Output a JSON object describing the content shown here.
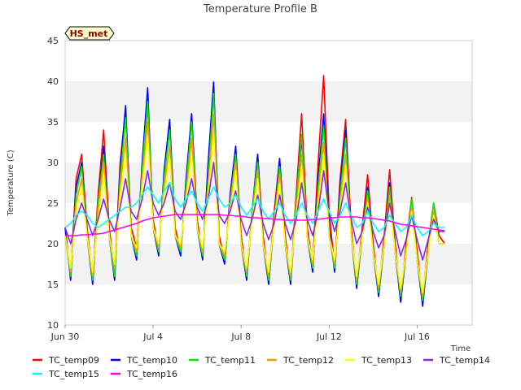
{
  "chart_data": {
    "type": "line",
    "title": "Temperature Profile B",
    "xlabel": "Time",
    "ylabel": "Temperature (C)",
    "badge": "HS_met",
    "ylim": [
      10,
      45
    ],
    "yticks": [
      10,
      15,
      20,
      25,
      30,
      35,
      40,
      45
    ],
    "xlim_days": [
      0,
      18.5
    ],
    "xticks": [
      {
        "day": 0,
        "label": "Jun 30"
      },
      {
        "day": 4,
        "label": "Jul 4"
      },
      {
        "day": 8,
        "label": "Jul 8"
      },
      {
        "day": 12,
        "label": "Jul 12"
      },
      {
        "day": 16,
        "label": "Jul 16"
      }
    ],
    "grid": "alternating horizontal bands",
    "legend_position": "bottom",
    "x_days": [
      0,
      0.25,
      0.5,
      0.75,
      1,
      1.25,
      1.5,
      1.75,
      2,
      2.25,
      2.5,
      2.75,
      3,
      3.25,
      3.5,
      3.75,
      4,
      4.25,
      4.5,
      4.75,
      5,
      5.25,
      5.5,
      5.75,
      6,
      6.25,
      6.5,
      6.75,
      7,
      7.25,
      7.5,
      7.75,
      8,
      8.25,
      8.5,
      8.75,
      9,
      9.25,
      9.5,
      9.75,
      10,
      10.25,
      10.5,
      10.75,
      11,
      11.25,
      11.5,
      11.75,
      12,
      12.25,
      12.5,
      12.75,
      13,
      13.25,
      13.5,
      13.75,
      14,
      14.25,
      14.5,
      14.75,
      15,
      15.25,
      15.5,
      15.75,
      16,
      16.25,
      16.5,
      16.75,
      17,
      17.25,
      17.5
    ],
    "series": [
      {
        "name": "TC_temp09",
        "color": "#ff0000",
        "values": [
          22,
          16,
          28,
          31,
          22,
          15.5,
          26,
          34,
          22,
          16.5,
          30,
          36.5,
          22,
          19.5,
          29,
          37,
          23,
          19,
          28,
          35,
          22,
          19,
          27,
          36,
          23,
          18.5,
          29,
          39.5,
          21,
          18,
          25,
          32,
          21,
          16,
          24,
          31,
          21,
          15.5,
          24,
          30.5,
          21,
          15.5,
          26,
          36,
          22,
          17.5,
          30,
          40.7,
          24,
          17,
          28,
          35.3,
          22,
          15,
          22,
          28.5,
          20,
          14,
          21,
          29.1,
          20,
          13,
          20,
          25.7,
          19,
          13,
          20,
          25,
          21,
          20
        ]
      },
      {
        "name": "TC_temp10",
        "color": "#0000ff",
        "values": [
          22,
          15.5,
          27,
          30,
          21,
          15,
          25,
          32,
          21,
          15.5,
          29,
          37,
          21,
          18,
          30,
          39.2,
          22,
          18.5,
          29,
          35.3,
          21,
          18.5,
          28,
          36,
          22,
          18,
          30,
          39.9,
          20,
          17.5,
          26,
          32,
          20,
          15.5,
          24,
          31,
          20,
          15,
          23,
          30.5,
          20,
          15,
          25,
          33,
          21,
          16.5,
          28,
          36,
          22,
          16.5,
          27,
          34,
          21,
          14.5,
          21,
          27,
          19,
          13.5,
          20,
          27.5,
          19,
          12.8,
          19,
          25,
          18,
          12.3,
          19,
          24,
          20,
          20
        ]
      },
      {
        "name": "TC_temp11",
        "color": "#00ee00",
        "values": [
          21,
          16,
          26,
          29.5,
          21,
          15.5,
          25,
          31,
          21,
          16,
          28,
          35.5,
          21,
          18.5,
          29,
          37.5,
          22,
          19,
          28,
          34,
          21,
          19,
          27,
          35,
          22,
          18.5,
          28,
          38.5,
          20,
          18,
          25,
          31,
          20,
          16,
          24,
          30,
          20,
          15.5,
          23,
          29.5,
          20,
          15.5,
          25,
          33.5,
          21,
          17,
          27,
          34.5,
          21,
          17,
          26,
          33,
          21,
          15,
          21,
          26.5,
          19,
          14,
          20,
          27,
          19,
          13.5,
          19,
          25.5,
          18,
          13,
          19,
          25,
          20,
          20
        ]
      },
      {
        "name": "TC_temp12",
        "color": "#ff9900",
        "values": [
          21,
          16.5,
          25,
          28,
          21,
          16,
          24,
          30,
          21,
          17,
          27,
          33,
          21,
          19,
          28,
          35,
          22,
          19.5,
          27,
          32,
          21,
          19.5,
          26,
          33,
          22,
          19,
          27,
          36,
          20,
          18.5,
          25,
          30,
          20,
          16.5,
          23,
          29,
          20,
          16,
          23,
          28.5,
          20,
          16,
          24,
          31,
          21,
          17.5,
          26,
          32.5,
          21,
          17.5,
          25,
          31,
          21,
          15.5,
          21,
          25.5,
          19,
          14.5,
          20,
          26,
          19,
          14,
          19,
          24.5,
          18,
          13.5,
          19,
          24,
          20,
          20
        ]
      },
      {
        "name": "TC_temp13",
        "color": "#ffff00",
        "values": [
          21,
          17,
          24,
          27,
          21,
          16.5,
          23,
          28.5,
          21,
          17.5,
          26,
          31,
          21,
          19.5,
          27,
          33,
          22,
          20,
          26,
          30.5,
          21,
          20,
          25.5,
          31,
          22,
          19.5,
          26,
          33.5,
          20,
          19,
          24,
          29,
          20,
          17,
          23,
          28,
          20,
          16.5,
          22.5,
          27.5,
          20,
          16.5,
          23.5,
          29.5,
          21,
          18,
          25,
          31,
          21,
          18,
          24.5,
          29.5,
          21,
          16,
          21,
          25,
          19,
          15,
          20,
          25,
          19,
          14.5,
          19,
          24,
          18,
          14,
          19,
          23.5,
          20,
          20
        ]
      },
      {
        "name": "TC_temp14",
        "color": "#8a2be2",
        "values": [
          22,
          20,
          23,
          25,
          23,
          21,
          23,
          25.5,
          23,
          21.5,
          24.5,
          28,
          24,
          23,
          25.5,
          29,
          25,
          23.5,
          25,
          27.5,
          24,
          23,
          25,
          28,
          24.5,
          23,
          25.5,
          30,
          23.5,
          22.5,
          24,
          26.5,
          23,
          21,
          23,
          26,
          22.5,
          20.5,
          22.5,
          26,
          22.5,
          20.5,
          23,
          27.5,
          23,
          21,
          24,
          29,
          24,
          21.5,
          24,
          27.5,
          23,
          20,
          21.5,
          24.5,
          21.5,
          19.5,
          21,
          25,
          21.5,
          18.5,
          20.5,
          23.5,
          20.5,
          18,
          20.5,
          23,
          21.5,
          21.5
        ]
      },
      {
        "name": "TC_temp15",
        "color": "#00ffff",
        "values": [
          22,
          22.5,
          23.5,
          24,
          23.5,
          22.5,
          22,
          22.5,
          23,
          23.5,
          24,
          24.5,
          24.5,
          25,
          26,
          27,
          26,
          25,
          26.5,
          27.5,
          25.5,
          24.5,
          25.5,
          26.5,
          25,
          24,
          25.5,
          27,
          25.5,
          24.5,
          25,
          26,
          24.5,
          23.5,
          24.5,
          25.5,
          24,
          23,
          24,
          25,
          23.5,
          22.5,
          23.5,
          25,
          23.5,
          22.5,
          24,
          25.5,
          24,
          22.5,
          23.5,
          25,
          23.5,
          22,
          22.5,
          24,
          22.5,
          21.5,
          22,
          23.5,
          22.5,
          21.5,
          22,
          23.5,
          22,
          21,
          21.5,
          22.5,
          22,
          22
        ]
      },
      {
        "name": "TC_temp16",
        "color": "#ff00ff",
        "values": [
          21,
          21,
          21,
          21.1,
          21.1,
          21.2,
          21.2,
          21.3,
          21.5,
          21.7,
          21.9,
          22.1,
          22.3,
          22.5,
          22.8,
          23,
          23.2,
          23.3,
          23.4,
          23.5,
          23.6,
          23.6,
          23.6,
          23.6,
          23.6,
          23.6,
          23.6,
          23.6,
          23.6,
          23.5,
          23.5,
          23.4,
          23.4,
          23.3,
          23.2,
          23.2,
          23.1,
          23.1,
          23,
          23,
          22.9,
          22.9,
          22.9,
          22.9,
          22.9,
          23,
          23,
          23.1,
          23.2,
          23.2,
          23.3,
          23.3,
          23.3,
          23.3,
          23.2,
          23.2,
          23.1,
          23,
          22.9,
          22.8,
          22.6,
          22.4,
          22.3,
          22.2,
          22.1,
          22,
          21.9,
          21.8,
          21.7,
          21.6
        ]
      }
    ]
  }
}
